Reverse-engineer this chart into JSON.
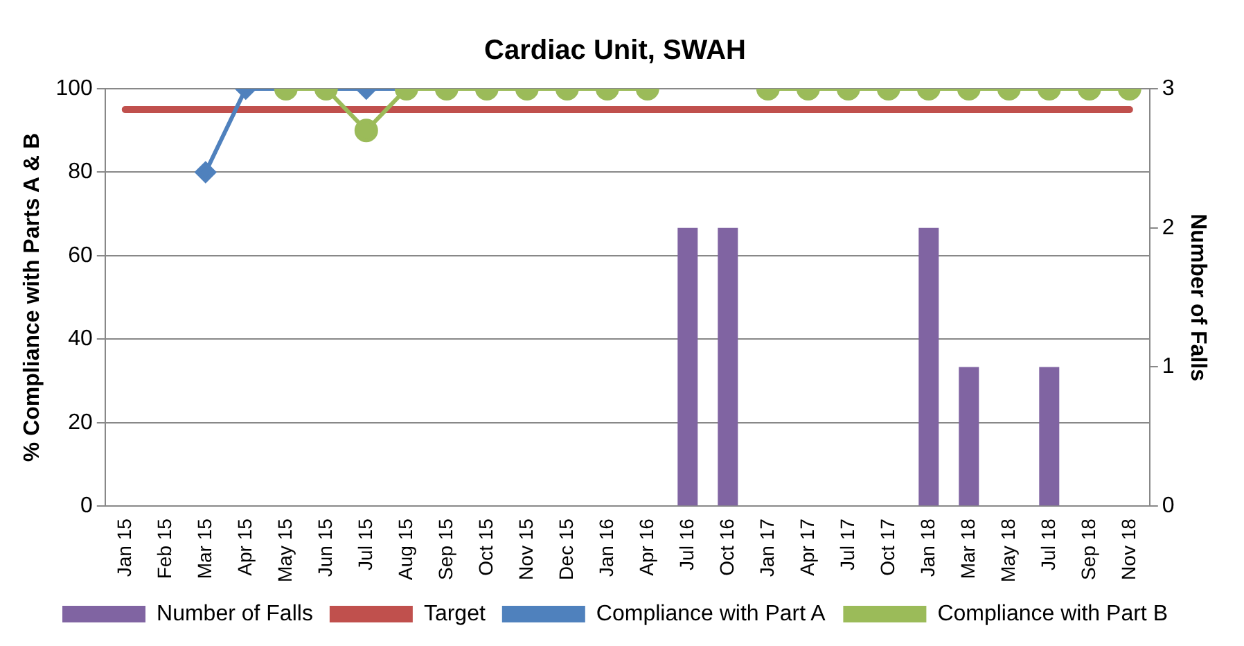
{
  "chart_data": {
    "type": "bar",
    "title": "Cardiac Unit, SWAH",
    "ylabel": "% Compliance with Parts A & B",
    "y2label": "Number of Falls",
    "categories": [
      "Jan 15",
      "Feb 15",
      "Mar 15",
      "Apr 15",
      "May 15",
      "Jun 15",
      "Jul 15",
      "Aug 15",
      "Sep 15",
      "Oct 15",
      "Nov 15",
      "Dec 15",
      "Jan 16",
      "Apr 16",
      "Jul 16",
      "Oct 16",
      "Jan 17",
      "Apr 17",
      "Jul 17",
      "Oct 17",
      "Jan 18",
      "Mar 18",
      "May 18",
      "Jul 18",
      "Sep 18",
      "Nov 18"
    ],
    "series": [
      {
        "name": "Number of Falls",
        "axis": "y2",
        "color": "#8064a2",
        "values": [
          null,
          null,
          null,
          null,
          null,
          null,
          null,
          null,
          null,
          null,
          null,
          null,
          null,
          null,
          2,
          2,
          null,
          null,
          null,
          null,
          2,
          1,
          null,
          1,
          null,
          null
        ]
      },
      {
        "name": "Target",
        "type": "line",
        "color": "#c0504d",
        "marker": "none",
        "values": [
          95,
          95,
          95,
          95,
          95,
          95,
          95,
          95,
          95,
          95,
          95,
          95,
          95,
          95,
          95,
          95,
          95,
          95,
          95,
          95,
          95,
          95,
          95,
          95,
          95,
          95
        ]
      },
      {
        "name": "Compliance with Part A",
        "type": "line",
        "color": "#4f81bd",
        "marker": "diamond",
        "values": [
          null,
          null,
          80,
          100,
          100,
          100,
          100,
          100,
          null,
          null,
          null,
          null,
          null,
          null,
          null,
          null,
          null,
          null,
          null,
          null,
          null,
          null,
          null,
          null,
          null,
          null
        ]
      },
      {
        "name": "Compliance with Part B",
        "type": "line",
        "color": "#9bbb59",
        "marker": "circle",
        "values": [
          null,
          null,
          null,
          null,
          100,
          100,
          90,
          100,
          100,
          100,
          100,
          100,
          100,
          100,
          null,
          null,
          100,
          100,
          100,
          100,
          100,
          100,
          100,
          100,
          100,
          100
        ]
      }
    ],
    "ylim": [
      0,
      100
    ],
    "yticks": [
      0,
      20,
      40,
      60,
      80,
      100
    ],
    "y2lim": [
      0,
      3
    ],
    "y2ticks": [
      0,
      1,
      2,
      3
    ],
    "grid": "y",
    "legend": "bottom"
  }
}
